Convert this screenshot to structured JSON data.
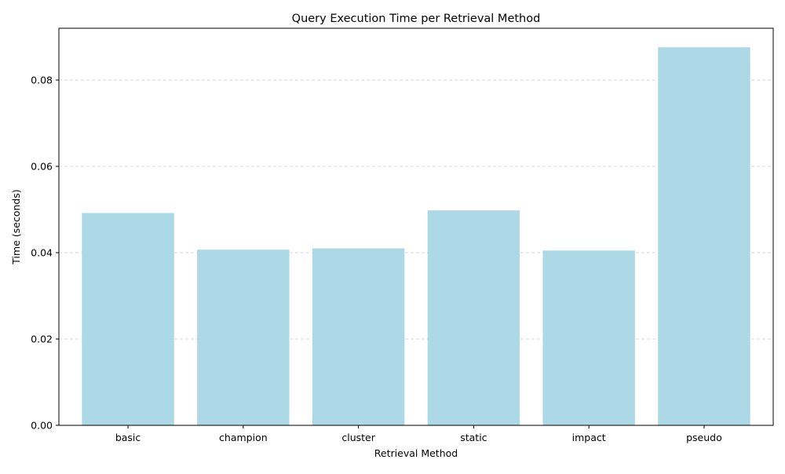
{
  "chart_data": {
    "type": "bar",
    "title": "Query Execution Time per Retrieval Method",
    "xlabel": "Retrieval Method",
    "ylabel": "Time (seconds)",
    "categories": [
      "basic",
      "champion",
      "cluster",
      "static",
      "impact",
      "pseudo"
    ],
    "values": [
      0.0492,
      0.0407,
      0.041,
      0.0498,
      0.0405,
      0.0876
    ],
    "ylim": [
      0,
      0.092
    ],
    "yticks": [
      0.0,
      0.02,
      0.04,
      0.06,
      0.08
    ],
    "ytick_labels": [
      "0.00",
      "0.02",
      "0.04",
      "0.06",
      "0.08"
    ],
    "grid": "y-dashed",
    "bar_color": "#add8e6",
    "grid_color": "#cccccc"
  }
}
